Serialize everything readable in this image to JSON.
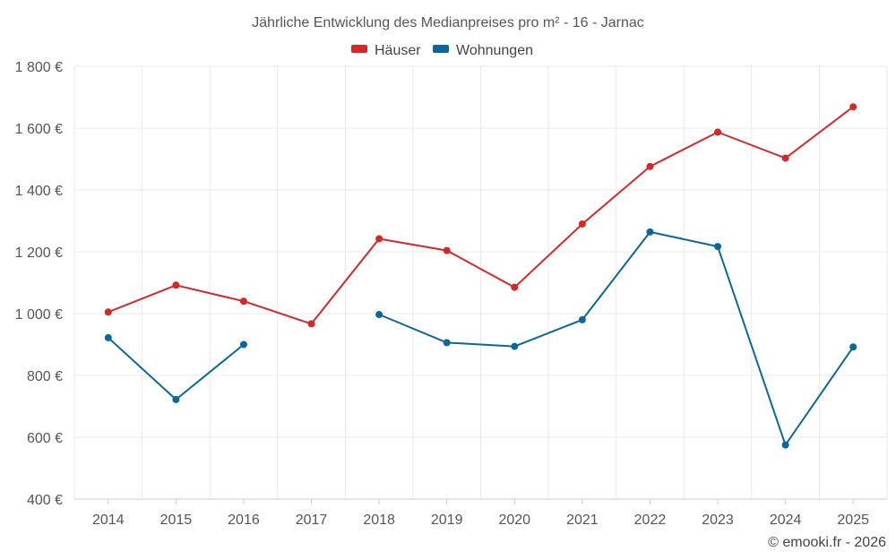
{
  "chart_data": {
    "type": "line",
    "title": "Jährliche Entwicklung des Medianpreises pro m² - 16 - Jarnac",
    "x": [
      2014,
      2015,
      2016,
      2017,
      2018,
      2019,
      2020,
      2021,
      2022,
      2023,
      2024,
      2025
    ],
    "x_tick_labels": [
      "2014",
      "2015",
      "2016",
      "2017",
      "2018",
      "2019",
      "2020",
      "2021",
      "2022",
      "2023",
      "2024",
      "2025"
    ],
    "ylim": [
      400,
      1800
    ],
    "y_ticks": [
      400,
      600,
      800,
      1000,
      1200,
      1400,
      1600,
      1800
    ],
    "y_tick_labels": [
      "400 €",
      "600 €",
      "800 €",
      "1 000 €",
      "1 200 €",
      "1 400 €",
      "1 600 €",
      "1 800 €"
    ],
    "grid": true,
    "legend_position": "top-center",
    "series": [
      {
        "name": "Häuser",
        "color": "#d62728",
        "values": [
          1005,
          1092,
          1040,
          967,
          1242,
          1204,
          1085,
          1290,
          1476,
          1587,
          1503,
          1669
        ]
      },
      {
        "name": "Wohnungen",
        "color": "#0a679b",
        "values": [
          922,
          722,
          900,
          null,
          997,
          906,
          894,
          980,
          1264,
          1217,
          575,
          892
        ]
      }
    ]
  },
  "footer": {
    "credit": "© emooki.fr - 2026"
  }
}
